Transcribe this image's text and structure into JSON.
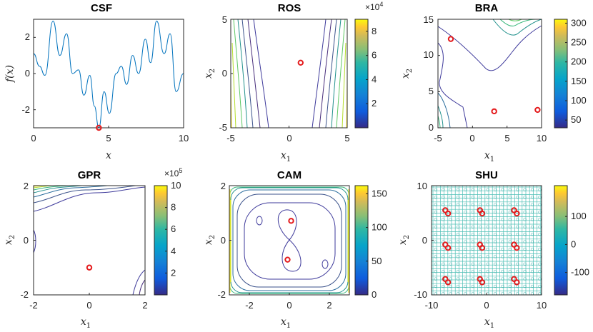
{
  "chart_data": [
    {
      "id": "csf",
      "type": "line",
      "title": "CSF",
      "xlabel": "x",
      "ylabel": "f(x)",
      "xlim": [
        0,
        10
      ],
      "ylim": [
        -3,
        3
      ],
      "xticks": [
        0,
        5,
        10
      ],
      "yticks": [
        -2,
        0,
        2
      ],
      "series": [
        {
          "name": "f(x)",
          "x": [
            0,
            0.4,
            0.75,
            1.3,
            1.75,
            2.2,
            2.6,
            3.0,
            3.35,
            3.75,
            4.05,
            4.35,
            4.7,
            5.05,
            5.5,
            5.85,
            6.2,
            6.6,
            7.0,
            7.45,
            7.8,
            8.2,
            8.7,
            9.1,
            9.5,
            10.0
          ],
          "y": [
            1.1,
            0.4,
            -0.1,
            2.9,
            1.0,
            2.2,
            0.0,
            0.2,
            -1.2,
            -0.1,
            -1.8,
            -3.0,
            -1.0,
            -2.2,
            0.0,
            0.4,
            -0.6,
            1.0,
            0.0,
            1.9,
            0.6,
            2.9,
            1.1,
            2.2,
            -1.0,
            0.0
          ]
        }
      ],
      "markers": [
        {
          "x": 4.35,
          "y": -3.0
        }
      ]
    },
    {
      "id": "ros",
      "type": "contour",
      "title": "ROS",
      "xlabel": "x1",
      "ylabel": "x2",
      "xlim": [
        -5,
        5
      ],
      "ylim": [
        -5,
        5
      ],
      "xticks": [
        -5,
        0,
        5
      ],
      "yticks": [
        -5,
        0,
        5
      ],
      "colorbar": {
        "range": [
          0,
          90000
        ],
        "ticks": [
          2,
          4,
          6,
          8
        ],
        "exponent": "×10^4",
        "exp_base": "×10",
        "exp_power": "4"
      },
      "markers": [
        {
          "x": 1,
          "y": 1
        }
      ]
    },
    {
      "id": "bra",
      "type": "contour",
      "title": "BRA",
      "xlabel": "x1",
      "ylabel": "x2",
      "xlim": [
        -5,
        10
      ],
      "ylim": [
        0,
        15
      ],
      "xticks": [
        -5,
        0,
        5,
        10
      ],
      "yticks": [
        0,
        5,
        10,
        15
      ],
      "colorbar": {
        "range": [
          30,
          310
        ],
        "ticks": [
          50,
          100,
          150,
          200,
          250,
          300
        ]
      },
      "markers": [
        {
          "x": -3.14,
          "y": 12.275
        },
        {
          "x": 3.14,
          "y": 2.275
        },
        {
          "x": 9.42,
          "y": 2.475
        }
      ]
    },
    {
      "id": "gpr",
      "type": "contour",
      "title": "GPR",
      "xlabel": "x1",
      "ylabel": "x2",
      "xlim": [
        -2,
        2
      ],
      "ylim": [
        -2,
        2
      ],
      "xticks": [
        -2,
        0,
        2
      ],
      "yticks": [
        -2,
        0,
        2
      ],
      "colorbar": {
        "range": [
          0,
          1000000
        ],
        "ticks": [
          2,
          4,
          6,
          8,
          10
        ],
        "exponent": "×10^5",
        "exp_base": "×10",
        "exp_power": "5"
      },
      "markers": [
        {
          "x": 0,
          "y": -1
        }
      ]
    },
    {
      "id": "cam",
      "type": "contour",
      "title": "CAM",
      "xlabel": "x1",
      "ylabel": "x2",
      "xlim": [
        -3,
        3
      ],
      "ylim": [
        -2,
        2
      ],
      "xticks": [
        -2,
        0,
        2
      ],
      "yticks": [
        -2,
        0,
        2
      ],
      "colorbar": {
        "range": [
          0,
          162
        ],
        "ticks": [
          0,
          50,
          100,
          150
        ]
      },
      "markers": [
        {
          "x": 0.09,
          "y": 0.71
        },
        {
          "x": -0.09,
          "y": -0.71
        }
      ]
    },
    {
      "id": "shu",
      "type": "contour",
      "title": "SHU",
      "xlabel": "x1",
      "ylabel": "x2",
      "xlim": [
        -10,
        10
      ],
      "ylim": [
        -10,
        10
      ],
      "xticks": [
        -10,
        0,
        10
      ],
      "yticks": [
        -10,
        0,
        10
      ],
      "colorbar": {
        "range": [
          -180,
          210
        ],
        "ticks": [
          -100,
          0,
          100
        ]
      },
      "markers": [
        {
          "x": -7.5,
          "y": 5.5
        },
        {
          "x": -7.0,
          "y": 4.9
        },
        {
          "x": -1.2,
          "y": 5.5
        },
        {
          "x": -0.8,
          "y": 4.9
        },
        {
          "x": 5.0,
          "y": 5.5
        },
        {
          "x": 5.5,
          "y": 4.9
        },
        {
          "x": -7.5,
          "y": -0.8
        },
        {
          "x": -7.0,
          "y": -1.4
        },
        {
          "x": -1.2,
          "y": -0.8
        },
        {
          "x": -0.8,
          "y": -1.4
        },
        {
          "x": 5.0,
          "y": -0.8
        },
        {
          "x": 5.5,
          "y": -1.4
        },
        {
          "x": -7.5,
          "y": -7.1
        },
        {
          "x": -7.0,
          "y": -7.7
        },
        {
          "x": -1.2,
          "y": -7.1
        },
        {
          "x": -0.8,
          "y": -7.7
        },
        {
          "x": 5.0,
          "y": -7.1
        },
        {
          "x": 5.5,
          "y": -7.7
        }
      ]
    }
  ]
}
